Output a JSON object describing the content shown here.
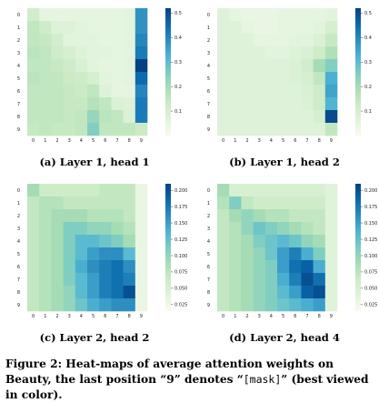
{
  "chart_data": [
    {
      "type": "heatmap",
      "caption": "(a) Layer 1, head 1",
      "x_ticks": [
        "0",
        "1",
        "2",
        "3",
        "4",
        "5",
        "6",
        "7",
        "8",
        "9"
      ],
      "y_ticks": [
        "0",
        "1",
        "2",
        "3",
        "4",
        "5",
        "6",
        "7",
        "8",
        "9"
      ],
      "colorbar_ticks": [
        "0.5",
        "0.4",
        "0.3",
        "0.2",
        "0.1"
      ],
      "colorbar_tick_values": [
        0.5,
        0.4,
        0.3,
        0.2,
        0.1
      ],
      "vmin": 0.0,
      "vmax": 0.52,
      "values": [
        [
          0.11,
          0.05,
          0.05,
          0.05,
          0.05,
          0.05,
          0.05,
          0.05,
          0.06,
          0.38
        ],
        [
          0.15,
          0.12,
          0.07,
          0.07,
          0.06,
          0.05,
          0.05,
          0.05,
          0.06,
          0.38
        ],
        [
          0.15,
          0.14,
          0.11,
          0.06,
          0.06,
          0.06,
          0.05,
          0.05,
          0.06,
          0.4
        ],
        [
          0.16,
          0.15,
          0.12,
          0.1,
          0.07,
          0.06,
          0.06,
          0.05,
          0.06,
          0.42
        ],
        [
          0.15,
          0.15,
          0.14,
          0.12,
          0.09,
          0.06,
          0.05,
          0.05,
          0.06,
          0.52
        ],
        [
          0.16,
          0.15,
          0.15,
          0.13,
          0.12,
          0.1,
          0.06,
          0.05,
          0.06,
          0.45
        ],
        [
          0.15,
          0.15,
          0.15,
          0.14,
          0.13,
          0.15,
          0.07,
          0.05,
          0.05,
          0.4
        ],
        [
          0.15,
          0.15,
          0.15,
          0.14,
          0.14,
          0.17,
          0.15,
          0.08,
          0.07,
          0.42
        ],
        [
          0.15,
          0.15,
          0.15,
          0.14,
          0.15,
          0.22,
          0.16,
          0.15,
          0.08,
          0.42
        ],
        [
          0.14,
          0.15,
          0.14,
          0.14,
          0.15,
          0.25,
          0.15,
          0.15,
          0.15,
          0.13
        ]
      ]
    },
    {
      "type": "heatmap",
      "caption": "(b) Layer 1, head 2",
      "x_ticks": [
        "0",
        "1",
        "2",
        "3",
        "4",
        "5",
        "6",
        "7",
        "8",
        "9"
      ],
      "y_ticks": [
        "0",
        "1",
        "2",
        "3",
        "4",
        "5",
        "6",
        "7",
        "8",
        "9"
      ],
      "colorbar_ticks": [
        "0.5",
        "0.4",
        "0.3",
        "0.2",
        "0.1"
      ],
      "colorbar_tick_values": [
        0.5,
        0.4,
        0.3,
        0.2,
        0.1
      ],
      "vmin": 0.0,
      "vmax": 0.52,
      "values": [
        [
          0.07,
          0.05,
          0.04,
          0.04,
          0.04,
          0.05,
          0.05,
          0.05,
          0.05,
          0.06
        ],
        [
          0.07,
          0.07,
          0.05,
          0.04,
          0.04,
          0.05,
          0.05,
          0.05,
          0.06,
          0.1
        ],
        [
          0.07,
          0.07,
          0.07,
          0.05,
          0.05,
          0.05,
          0.06,
          0.06,
          0.08,
          0.14
        ],
        [
          0.07,
          0.07,
          0.07,
          0.07,
          0.06,
          0.06,
          0.07,
          0.09,
          0.12,
          0.18
        ],
        [
          0.07,
          0.07,
          0.07,
          0.07,
          0.07,
          0.07,
          0.08,
          0.11,
          0.2,
          0.25
        ],
        [
          0.07,
          0.07,
          0.07,
          0.07,
          0.07,
          0.07,
          0.08,
          0.1,
          0.15,
          0.33
        ],
        [
          0.07,
          0.07,
          0.07,
          0.07,
          0.07,
          0.07,
          0.07,
          0.09,
          0.12,
          0.35
        ],
        [
          0.07,
          0.07,
          0.07,
          0.07,
          0.07,
          0.07,
          0.07,
          0.08,
          0.12,
          0.32
        ],
        [
          0.07,
          0.07,
          0.07,
          0.07,
          0.07,
          0.07,
          0.07,
          0.07,
          0.1,
          0.5
        ],
        [
          0.07,
          0.07,
          0.07,
          0.07,
          0.07,
          0.07,
          0.07,
          0.07,
          0.07,
          0.15
        ]
      ]
    },
    {
      "type": "heatmap",
      "caption": "(c) Layer 2, head 2",
      "x_ticks": [
        "0",
        "1",
        "2",
        "3",
        "4",
        "5",
        "6",
        "7",
        "8",
        "9"
      ],
      "y_ticks": [
        "0",
        "1",
        "2",
        "3",
        "4",
        "5",
        "6",
        "7",
        "8",
        "9"
      ],
      "colorbar_ticks": [
        "0.200",
        "0.175",
        "0.150",
        "0.125",
        "0.100",
        "0.075",
        "0.050",
        "0.025"
      ],
      "colorbar_tick_values": [
        0.2,
        0.175,
        0.15,
        0.125,
        0.1,
        0.075,
        0.05,
        0.025
      ],
      "vmin": 0.015,
      "vmax": 0.21,
      "values": [
        [
          0.09,
          0.06,
          0.06,
          0.06,
          0.06,
          0.06,
          0.07,
          0.07,
          0.07,
          0.03
        ],
        [
          0.07,
          0.08,
          0.08,
          0.07,
          0.07,
          0.07,
          0.07,
          0.07,
          0.07,
          0.03
        ],
        [
          0.07,
          0.08,
          0.09,
          0.09,
          0.09,
          0.08,
          0.08,
          0.08,
          0.07,
          0.03
        ],
        [
          0.07,
          0.08,
          0.09,
          0.11,
          0.11,
          0.1,
          0.1,
          0.09,
          0.08,
          0.03
        ],
        [
          0.07,
          0.08,
          0.09,
          0.11,
          0.13,
          0.13,
          0.12,
          0.11,
          0.09,
          0.03
        ],
        [
          0.07,
          0.08,
          0.09,
          0.11,
          0.13,
          0.15,
          0.16,
          0.16,
          0.13,
          0.03
        ],
        [
          0.07,
          0.08,
          0.09,
          0.11,
          0.14,
          0.16,
          0.17,
          0.18,
          0.16,
          0.03
        ],
        [
          0.07,
          0.08,
          0.09,
          0.11,
          0.13,
          0.15,
          0.17,
          0.18,
          0.17,
          0.03
        ],
        [
          0.07,
          0.08,
          0.09,
          0.1,
          0.13,
          0.15,
          0.17,
          0.18,
          0.2,
          0.03
        ],
        [
          0.07,
          0.08,
          0.09,
          0.1,
          0.12,
          0.14,
          0.15,
          0.16,
          0.16,
          0.03
        ]
      ]
    },
    {
      "type": "heatmap",
      "caption": "(d) Layer 2, head 4",
      "x_ticks": [
        "0",
        "1",
        "2",
        "3",
        "4",
        "5",
        "6",
        "7",
        "8",
        "9"
      ],
      "y_ticks": [
        "0",
        "1",
        "2",
        "3",
        "4",
        "5",
        "6",
        "7",
        "8",
        "9"
      ],
      "colorbar_ticks": [
        "0.200",
        "0.175",
        "0.150",
        "0.125",
        "0.100",
        "0.075",
        "0.050",
        "0.025"
      ],
      "colorbar_tick_values": [
        0.2,
        0.175,
        0.15,
        0.125,
        0.1,
        0.075,
        0.05,
        0.025
      ],
      "vmin": 0.015,
      "vmax": 0.21,
      "values": [
        [
          0.09,
          0.05,
          0.05,
          0.05,
          0.05,
          0.05,
          0.05,
          0.05,
          0.05,
          0.04
        ],
        [
          0.08,
          0.11,
          0.07,
          0.06,
          0.06,
          0.06,
          0.06,
          0.06,
          0.06,
          0.04
        ],
        [
          0.07,
          0.09,
          0.1,
          0.09,
          0.08,
          0.08,
          0.07,
          0.07,
          0.07,
          0.04
        ],
        [
          0.07,
          0.08,
          0.1,
          0.12,
          0.11,
          0.1,
          0.09,
          0.08,
          0.07,
          0.04
        ],
        [
          0.07,
          0.08,
          0.09,
          0.11,
          0.12,
          0.13,
          0.12,
          0.1,
          0.09,
          0.04
        ],
        [
          0.07,
          0.08,
          0.09,
          0.1,
          0.12,
          0.15,
          0.17,
          0.14,
          0.11,
          0.04
        ],
        [
          0.07,
          0.08,
          0.09,
          0.1,
          0.11,
          0.15,
          0.18,
          0.19,
          0.14,
          0.04
        ],
        [
          0.07,
          0.08,
          0.09,
          0.1,
          0.11,
          0.14,
          0.17,
          0.2,
          0.18,
          0.04
        ],
        [
          0.07,
          0.08,
          0.09,
          0.1,
          0.11,
          0.13,
          0.15,
          0.19,
          0.2,
          0.04
        ],
        [
          0.07,
          0.08,
          0.09,
          0.1,
          0.11,
          0.12,
          0.13,
          0.14,
          0.15,
          0.04
        ]
      ]
    }
  ],
  "captions": {
    "a": "(a) Layer 1, head 1",
    "b": "(b) Layer 1, head 2",
    "c": "(c) Layer 2, head 2",
    "d": "(d) Layer 2, head 4"
  },
  "figure_caption": {
    "part1": "Figure 2: Heat-maps of average attention weights on Beauty, the last position “9” denotes “",
    "mask_token": "[mask]",
    "part2": "” (best viewed in color)."
  },
  "colormap": [
    "#f7fcf0",
    "#e0f3db",
    "#ccebc5",
    "#a8ddb5",
    "#7bccc4",
    "#4eb3d3",
    "#2b8cbe",
    "#0868ac",
    "#084081"
  ]
}
